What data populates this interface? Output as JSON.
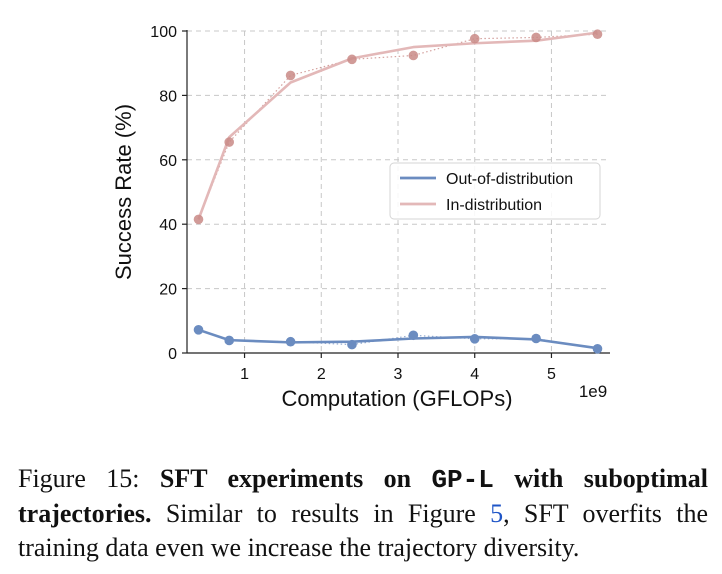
{
  "chart_data": {
    "type": "line",
    "xlabel": "Computation (GFLOPs)",
    "ylabel": "Success Rate (%)",
    "x_offset_label": "1e9",
    "xlim": [
      0.25,
      5.75
    ],
    "ylim": [
      0,
      100
    ],
    "x_ticks": [
      1,
      2,
      3,
      4,
      5
    ],
    "y_ticks": [
      0,
      20,
      40,
      60,
      80,
      100
    ],
    "grid": true,
    "legend_position": "center-right",
    "series": [
      {
        "name": "Out-of-distribution",
        "color": "#6b8cc0",
        "x": [
          0.4,
          0.8,
          1.6,
          2.4,
          3.2,
          4.0,
          4.8,
          5.6
        ],
        "points": [
          7.2,
          3.9,
          3.5,
          2.6,
          5.5,
          4.4,
          4.5,
          1.3
        ],
        "line": [
          7.2,
          4.0,
          3.3,
          3.5,
          4.5,
          5.0,
          4.2,
          1.5
        ]
      },
      {
        "name": "In-distribution",
        "color": "#e3b8b8",
        "dot_color": "#c98a86",
        "x": [
          0.4,
          0.8,
          1.6,
          2.4,
          3.2,
          4.0,
          4.8,
          5.6
        ],
        "points": [
          41.5,
          65.5,
          86.2,
          91.2,
          92.4,
          97.6,
          98.0,
          99.0
        ],
        "line": [
          41.5,
          67.0,
          84.0,
          91.5,
          95.0,
          96.2,
          97.0,
          99.5
        ]
      }
    ]
  },
  "caption": {
    "prefix": "Figure 15: ",
    "bold_1": "SFT experiments on ",
    "code": "GP-L",
    "bold_2": " with suboptimal trajectories.",
    "text_1": " Similar to results in Figure ",
    "ref": "5",
    "text_2": ", SFT overfits the training data even we increase the trajectory diversity."
  }
}
